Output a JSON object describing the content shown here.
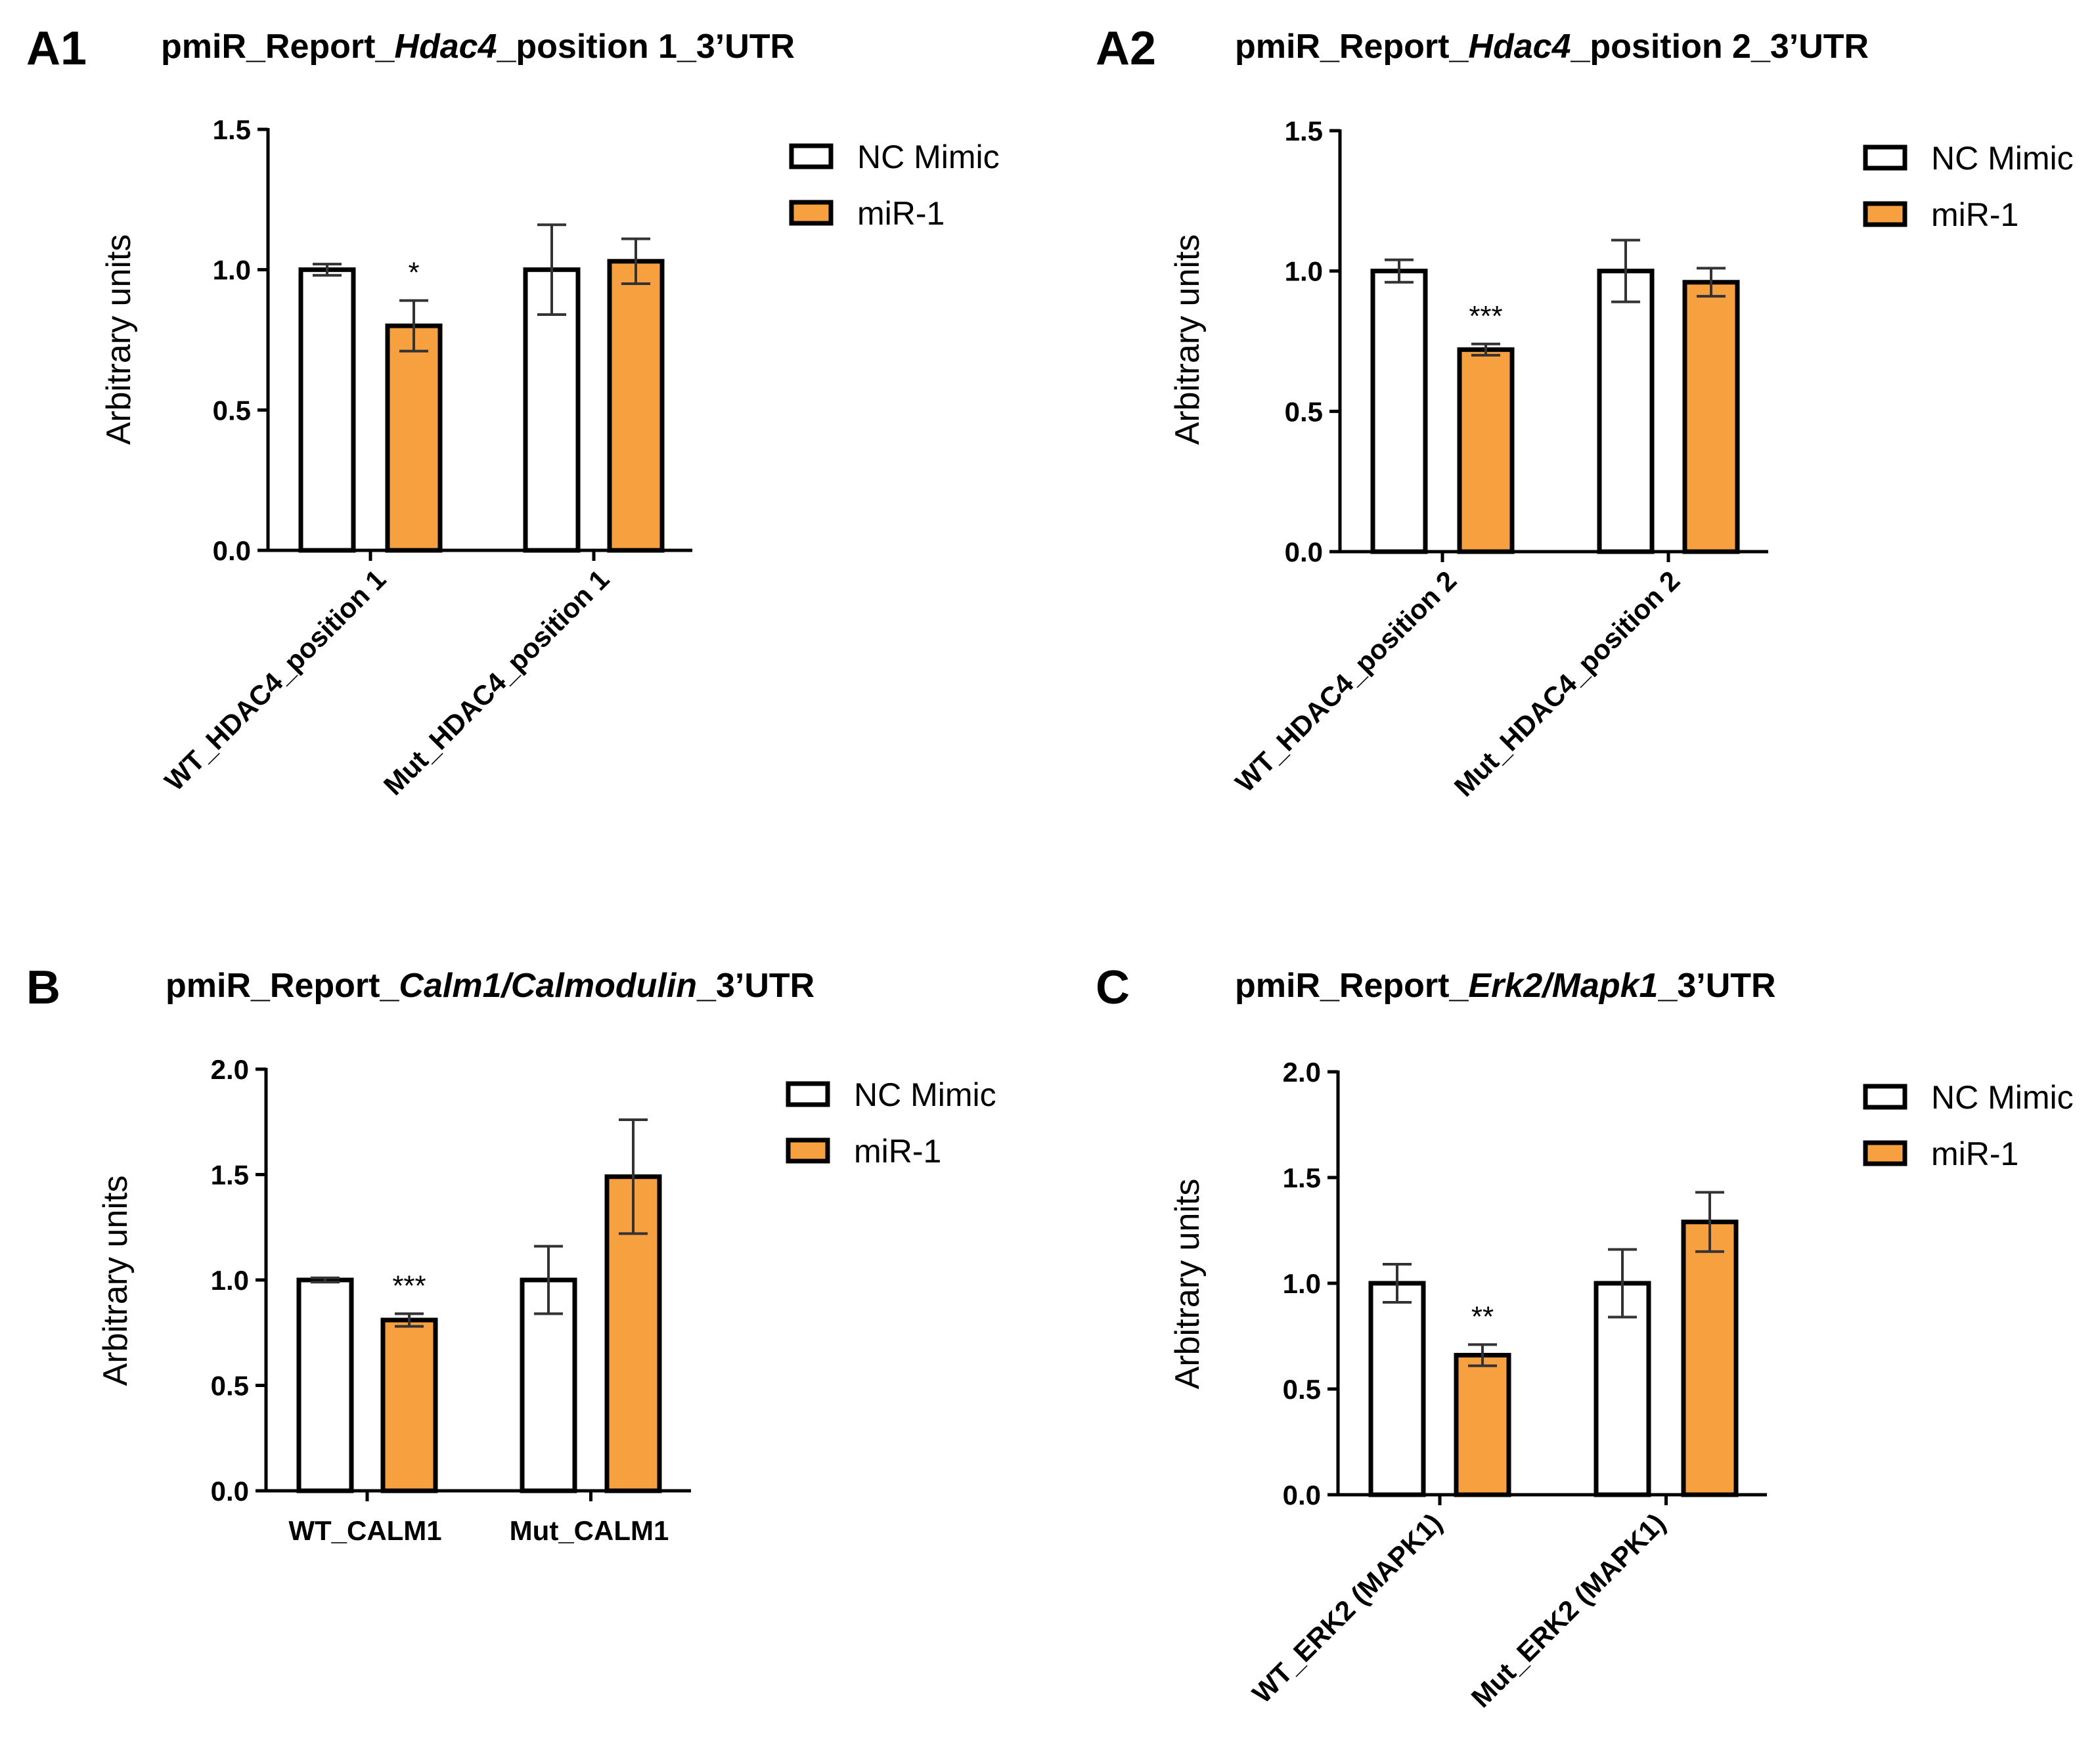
{
  "colors": {
    "nc_fill": "#ffffff",
    "mir_fill": "#f7a040",
    "bar_stroke": "#000000"
  },
  "legend": [
    "NC Mimic",
    "miR-1"
  ],
  "chart_data": [
    {
      "id": "A1",
      "panel_label": "A1",
      "type": "bar",
      "title_parts": [
        {
          "text": "pmiR_Report_",
          "italic": false
        },
        {
          "text": "Hdac4",
          "italic": true
        },
        {
          "text": "_position 1_3’UTR",
          "italic": false
        }
      ],
      "ylabel": "Arbitrary units",
      "ylim": [
        0,
        1.5
      ],
      "yticks": [
        "0.0",
        "0.5",
        "1.0",
        "1.5"
      ],
      "categories": [
        "WT_HDAC4_position 1",
        "Mut_HDAC4_position 1"
      ],
      "rotate_categories": true,
      "series": [
        {
          "name": "NC Mimic",
          "values": [
            1.0,
            1.0
          ],
          "errors": [
            0.02,
            0.16
          ]
        },
        {
          "name": "miR-1",
          "values": [
            0.8,
            1.03
          ],
          "errors": [
            0.09,
            0.08
          ]
        }
      ],
      "significance": [
        "*",
        ""
      ]
    },
    {
      "id": "A2",
      "panel_label": "A2",
      "type": "bar",
      "title_parts": [
        {
          "text": "pmiR_Report_",
          "italic": false
        },
        {
          "text": "Hdac4",
          "italic": true
        },
        {
          "text": "_position 2_3’UTR",
          "italic": false
        }
      ],
      "ylabel": "Arbitrary units",
      "ylim": [
        0,
        1.5
      ],
      "yticks": [
        "0.0",
        "0.5",
        "1.0",
        "1.5"
      ],
      "categories": [
        "WT_HDAC4_position 2",
        "Mut_HDAC4_position 2"
      ],
      "rotate_categories": true,
      "series": [
        {
          "name": "NC Mimic",
          "values": [
            1.0,
            1.0
          ],
          "errors": [
            0.04,
            0.11
          ]
        },
        {
          "name": "miR-1",
          "values": [
            0.72,
            0.96
          ],
          "errors": [
            0.02,
            0.05
          ]
        }
      ],
      "significance": [
        "***",
        ""
      ]
    },
    {
      "id": "B",
      "panel_label": "B",
      "type": "bar",
      "title_parts": [
        {
          "text": "pmiR_Report_",
          "italic": false
        },
        {
          "text": "Calm1/Calmodulin",
          "italic": true
        },
        {
          "text": "_3’UTR",
          "italic": false
        }
      ],
      "ylabel": "Arbitrary units",
      "ylim": [
        0,
        2.0
      ],
      "yticks": [
        "0.0",
        "0.5",
        "1.0",
        "1.5",
        "2.0"
      ],
      "categories": [
        "WT_CALM1",
        "Mut_CALM1"
      ],
      "rotate_categories": false,
      "series": [
        {
          "name": "NC Mimic",
          "values": [
            1.0,
            1.0
          ],
          "errors": [
            0.01,
            0.16
          ]
        },
        {
          "name": "miR-1",
          "values": [
            0.81,
            1.49
          ],
          "errors": [
            0.03,
            0.27
          ]
        }
      ],
      "significance": [
        "***",
        ""
      ]
    },
    {
      "id": "C",
      "panel_label": "C",
      "type": "bar",
      "title_parts": [
        {
          "text": "pmiR_Report_",
          "italic": false
        },
        {
          "text": "Erk2/Mapk1",
          "italic": true
        },
        {
          "text": "_3’UTR",
          "italic": false
        }
      ],
      "ylabel": "Arbitrary units",
      "ylim": [
        0,
        2.0
      ],
      "yticks": [
        "0.0",
        "0.5",
        "1.0",
        "1.5",
        "2.0"
      ],
      "categories": [
        "WT_ERK2 (MAPK1)",
        "Mut_ERK2 (MAPK1)"
      ],
      "rotate_categories": true,
      "series": [
        {
          "name": "NC Mimic",
          "values": [
            1.0,
            1.0
          ],
          "errors": [
            0.09,
            0.16
          ]
        },
        {
          "name": "miR-1",
          "values": [
            0.66,
            1.29
          ],
          "errors": [
            0.05,
            0.14
          ]
        }
      ],
      "significance": [
        "**",
        ""
      ]
    }
  ]
}
